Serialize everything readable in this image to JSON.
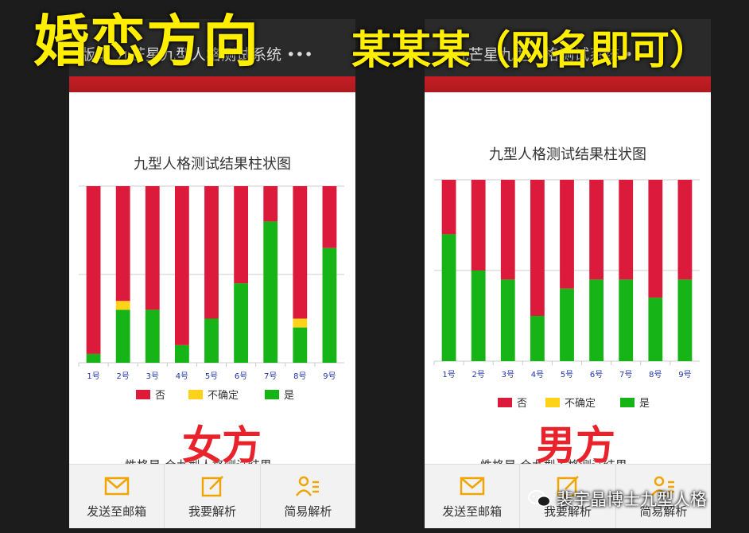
{
  "banner": {
    "left_text": "婚恋方向",
    "right_text": "某某某（网名即可）"
  },
  "colors": {
    "no": "#dc1b3c",
    "uncertain": "#ffd21a",
    "yes": "#17b418",
    "accent": "#ffee00"
  },
  "phones": [
    {
      "topbar_title": "版本 九芒星九型人格测试系统 •••",
      "gender_label": "女方",
      "partial_text": "性格是 合九型人格测试结果。",
      "actions": [
        {
          "label": "发送至邮箱",
          "icon": "mail-icon"
        },
        {
          "label": "我要解析",
          "icon": "edit-icon"
        },
        {
          "label": "简易解析",
          "icon": "user-list-icon"
        }
      ]
    },
    {
      "topbar_title": "< 九芒星九型人格测试系统 •",
      "gender_label": "男方",
      "partial_text": "性格是 合九型人格测试结果。",
      "actions": [
        {
          "label": "发送至邮箱",
          "icon": "mail-icon"
        },
        {
          "label": "我要解析",
          "icon": "edit-icon"
        },
        {
          "label": "简易解析",
          "icon": "user-list-icon"
        }
      ]
    }
  ],
  "chart_data": [
    {
      "type": "bar",
      "stacked": true,
      "title": "九型人格测试结果柱状图",
      "categories": [
        "1号",
        "2号",
        "3号",
        "4号",
        "5号",
        "6号",
        "7号",
        "8号",
        "9号"
      ],
      "ylim": [
        0,
        1
      ],
      "grid": true,
      "legend_position": "bottom",
      "series": [
        {
          "name": "是",
          "values": [
            0.05,
            0.3,
            0.3,
            0.1,
            0.25,
            0.45,
            0.8,
            0.2,
            0.65
          ]
        },
        {
          "name": "不确定",
          "values": [
            0,
            0.05,
            0,
            0,
            0,
            0,
            0,
            0.05,
            0
          ]
        },
        {
          "name": "否",
          "values": [
            0.95,
            0.65,
            0.7,
            0.9,
            0.75,
            0.55,
            0.2,
            0.75,
            0.35
          ]
        }
      ]
    },
    {
      "type": "bar",
      "stacked": true,
      "title": "九型人格测试结果柱状图",
      "categories": [
        "1号",
        "2号",
        "3号",
        "4号",
        "5号",
        "6号",
        "7号",
        "8号",
        "9号"
      ],
      "ylim": [
        0,
        1
      ],
      "grid": true,
      "legend_position": "bottom",
      "series": [
        {
          "name": "是",
          "values": [
            0.7,
            0.5,
            0.45,
            0.25,
            0.4,
            0.45,
            0.45,
            0.35,
            0.45
          ]
        },
        {
          "name": "不确定",
          "values": [
            0,
            0,
            0,
            0,
            0,
            0,
            0,
            0,
            0
          ]
        },
        {
          "name": "否",
          "values": [
            0.3,
            0.5,
            0.55,
            0.75,
            0.6,
            0.55,
            0.55,
            0.65,
            0.55
          ]
        }
      ]
    }
  ],
  "watermark": {
    "text": "裴宇晶博士九型人格",
    "icon": "wechat-icon"
  }
}
